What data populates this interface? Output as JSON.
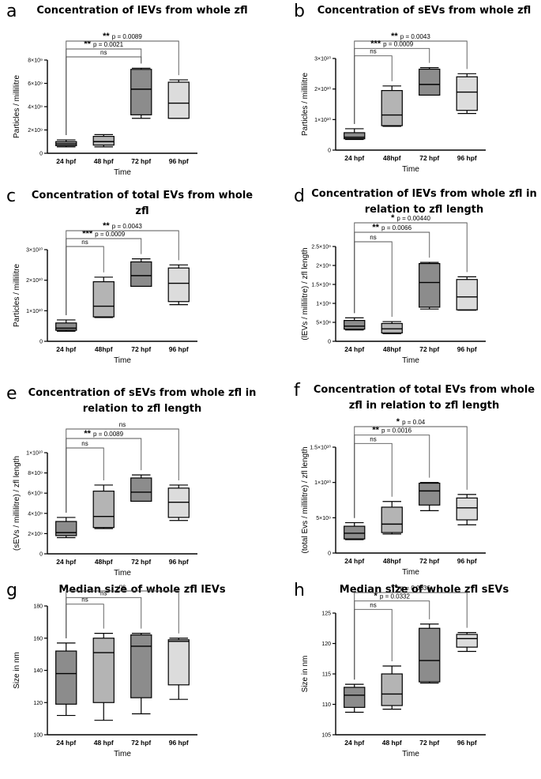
{
  "chart_data": [
    {
      "panel_label": "a",
      "type": "box",
      "title": "Concentration of lEVs from whole zfl",
      "xlabel": "Time",
      "ylabel": "Particles / millilitre",
      "categories": [
        "24 hpf",
        "48 hpf",
        "72 hpf",
        "96 hpf"
      ],
      "ylim": [
        0,
        8000000000
      ],
      "yticks": [
        0,
        2000000000,
        4000000000,
        6000000000,
        8000000000
      ],
      "ytick_labels": [
        "0",
        "2×10⁹",
        "4×10⁹",
        "6×10⁹",
        "8×10⁹"
      ],
      "boxes": [
        {
          "min": 550000000,
          "q1": 650000000,
          "median": 800000000,
          "q3": 1000000000,
          "max": 1150000000,
          "color": "#8c8c8c"
        },
        {
          "min": 550000000,
          "q1": 700000000,
          "median": 1000000000,
          "q3": 1450000000,
          "max": 1600000000,
          "color": "#b4b4b4"
        },
        {
          "min": 3000000000,
          "q1": 3300000000,
          "median": 5500000000,
          "q3": 7200000000,
          "max": 7300000000,
          "color": "#8c8c8c"
        },
        {
          "min": 3000000000,
          "q1": 3000000000,
          "median": 4300000000,
          "q3": 6100000000,
          "max": 6300000000,
          "color": "#dcdcdc"
        }
      ],
      "comparisons": [
        {
          "from": 0,
          "to": 2,
          "stars": "",
          "label": "ns"
        },
        {
          "from": 0,
          "to": 2,
          "stars": "**",
          "label": "p = 0.0021"
        },
        {
          "from": 0,
          "to": 3,
          "stars": "**",
          "label": "p = 0.0089"
        }
      ]
    },
    {
      "panel_label": "b",
      "type": "box",
      "title": "Concentration of sEVs from whole zfl",
      "xlabel": "Time",
      "ylabel": "Particles / millilitre",
      "categories": [
        "24 hpf",
        "48hpf",
        "72 hpf",
        "96 hpf"
      ],
      "ylim": [
        0,
        30000000000
      ],
      "yticks": [
        0,
        10000000000,
        20000000000,
        30000000000
      ],
      "ytick_labels": [
        "0",
        "1×10¹⁰",
        "2×10¹⁰",
        "3×10¹⁰"
      ],
      "boxes": [
        {
          "min": 3500000000,
          "q1": 3700000000,
          "median": 4200000000,
          "q3": 5700000000,
          "max": 7000000000,
          "color": "#8c8c8c"
        },
        {
          "min": 7800000000,
          "q1": 8000000000,
          "median": 11500000000,
          "q3": 19500000000,
          "max": 21000000000,
          "color": "#b4b4b4"
        },
        {
          "min": 18000000000,
          "q1": 18000000000,
          "median": 21500000000,
          "q3": 26500000000,
          "max": 27000000000,
          "color": "#8c8c8c"
        },
        {
          "min": 12000000000,
          "q1": 13000000000,
          "median": 19000000000,
          "q3": 24000000000,
          "max": 25000000000,
          "color": "#dcdcdc"
        }
      ],
      "comparisons": [
        {
          "from": 0,
          "to": 1,
          "stars": "",
          "label": "ns"
        },
        {
          "from": 0,
          "to": 2,
          "stars": "***",
          "label": "p = 0.0009"
        },
        {
          "from": 0,
          "to": 3,
          "stars": "**",
          "label": "p = 0.0043"
        }
      ]
    },
    {
      "panel_label": "c",
      "type": "box",
      "title": "Concentration of total EVs from whole zfl",
      "xlabel": "Time",
      "ylabel": "Particles / millilitre",
      "categories": [
        "24 hpf",
        "48hpf",
        "72 hpf",
        "96 hpf"
      ],
      "ylim": [
        0,
        30000000000
      ],
      "yticks": [
        0,
        10000000000,
        20000000000,
        30000000000
      ],
      "ytick_labels": [
        "0",
        "1×10¹⁰",
        "2×10¹⁰",
        "3×10¹⁰"
      ],
      "boxes": [
        {
          "min": 3300000000,
          "q1": 3600000000,
          "median": 4300000000,
          "q3": 6000000000,
          "max": 7000000000,
          "color": "#8c8c8c"
        },
        {
          "min": 7800000000,
          "q1": 8000000000,
          "median": 11500000000,
          "q3": 19500000000,
          "max": 21000000000,
          "color": "#b4b4b4"
        },
        {
          "min": 18000000000,
          "q1": 18000000000,
          "median": 21500000000,
          "q3": 26000000000,
          "max": 27000000000,
          "color": "#8c8c8c"
        },
        {
          "min": 12000000000,
          "q1": 13000000000,
          "median": 19000000000,
          "q3": 24000000000,
          "max": 25000000000,
          "color": "#dcdcdc"
        }
      ],
      "comparisons": [
        {
          "from": 0,
          "to": 1,
          "stars": "",
          "label": "ns"
        },
        {
          "from": 0,
          "to": 2,
          "stars": "***",
          "label": "p = 0.0009"
        },
        {
          "from": 0,
          "to": 3,
          "stars": "**",
          "label": "p = 0.0043"
        }
      ]
    },
    {
      "panel_label": "d",
      "type": "box",
      "title": "Concentration of lEVs from whole zfl in relation to zfl length",
      "xlabel": "Time",
      "ylabel": "(lEVs / millilitre) / zfl length",
      "categories": [
        "24 hpf",
        "48hpf",
        "72 hpf",
        "96 hpf"
      ],
      "ylim": [
        0,
        2500000000
      ],
      "yticks": [
        0,
        500000000,
        1000000000,
        1500000000,
        2000000000,
        2500000000
      ],
      "ytick_labels": [
        "0",
        "5×10⁸",
        "1×10⁹",
        "1.5×10⁹",
        "2×10⁹",
        "2.5×10⁹"
      ],
      "boxes": [
        {
          "min": 300000000,
          "q1": 320000000,
          "median": 400000000,
          "q3": 550000000,
          "max": 620000000,
          "color": "#8c8c8c"
        },
        {
          "min": 200000000,
          "q1": 220000000,
          "median": 330000000,
          "q3": 470000000,
          "max": 520000000,
          "color": "#b4b4b4"
        },
        {
          "min": 850000000,
          "q1": 900000000,
          "median": 1550000000,
          "q3": 2050000000,
          "max": 2080000000,
          "color": "#8c8c8c"
        },
        {
          "min": 820000000,
          "q1": 830000000,
          "median": 1170000000,
          "q3": 1630000000,
          "max": 1700000000,
          "color": "#dcdcdc"
        }
      ],
      "comparisons": [
        {
          "from": 0,
          "to": 1,
          "stars": "",
          "label": "ns"
        },
        {
          "from": 0,
          "to": 2,
          "stars": "**",
          "label": "p = 0.0066"
        },
        {
          "from": 0,
          "to": 3,
          "stars": "*",
          "label": "p = 0.00440"
        }
      ]
    },
    {
      "panel_label": "e",
      "type": "box",
      "title": "Concentration of sEVs from whole zfl in relation to zfl length",
      "xlabel": "Time",
      "ylabel": "(sEVs / millilitre) / zfl length",
      "categories": [
        "24 hpf",
        "48hpf",
        "72 hpf",
        "96 hpf"
      ],
      "ylim": [
        0,
        10000000000
      ],
      "yticks": [
        0,
        2000000000,
        4000000000,
        6000000000,
        8000000000,
        10000000000
      ],
      "ytick_labels": [
        "0",
        "2×10⁹",
        "4×10⁹",
        "6×10⁹",
        "8×10⁹",
        "1×10¹⁰"
      ],
      "boxes": [
        {
          "min": 1600000000,
          "q1": 1800000000,
          "median": 2100000000,
          "q3": 3200000000,
          "max": 3600000000,
          "color": "#8c8c8c"
        },
        {
          "min": 2500000000,
          "q1": 2600000000,
          "median": 3700000000,
          "q3": 6200000000,
          "max": 6800000000,
          "color": "#b4b4b4"
        },
        {
          "min": 5200000000,
          "q1": 5200000000,
          "median": 6100000000,
          "q3": 7500000000,
          "max": 7800000000,
          "color": "#8c8c8c"
        },
        {
          "min": 3300000000,
          "q1": 3600000000,
          "median": 5100000000,
          "q3": 6500000000,
          "max": 6800000000,
          "color": "#dcdcdc"
        }
      ],
      "comparisons": [
        {
          "from": 0,
          "to": 1,
          "stars": "",
          "label": "ns"
        },
        {
          "from": 0,
          "to": 2,
          "stars": "**",
          "label": "p = 0.0089"
        },
        {
          "from": 0,
          "to": 3,
          "stars": "",
          "label": "ns"
        }
      ]
    },
    {
      "panel_label": "f",
      "type": "box",
      "title": "Concentration of total EVs from whole zfl in relation to zfl length",
      "xlabel": "Time",
      "ylabel": "(total Evs / millilitre) / zfl length",
      "categories": [
        "24 hpf",
        "48hpf",
        "72 hpf",
        "96 hpf"
      ],
      "ylim": [
        0,
        15000000000
      ],
      "yticks": [
        0,
        5000000000,
        10000000000,
        15000000000
      ],
      "ytick_labels": [
        "0",
        "5×10⁹",
        "1×10¹⁰",
        "1.5×10¹⁰"
      ],
      "boxes": [
        {
          "min": 1900000000,
          "q1": 2000000000,
          "median": 2800000000,
          "q3": 3800000000,
          "max": 4300000000,
          "color": "#8c8c8c"
        },
        {
          "min": 2700000000,
          "q1": 2900000000,
          "median": 4100000000,
          "q3": 6500000000,
          "max": 7300000000,
          "color": "#b4b4b4"
        },
        {
          "min": 6000000000,
          "q1": 6800000000,
          "median": 8800000000,
          "q3": 9900000000,
          "max": 10000000000,
          "color": "#8c8c8c"
        },
        {
          "min": 4000000000,
          "q1": 4700000000,
          "median": 6400000000,
          "q3": 7800000000,
          "max": 8300000000,
          "color": "#dcdcdc"
        }
      ],
      "comparisons": [
        {
          "from": 0,
          "to": 1,
          "stars": "",
          "label": "ns"
        },
        {
          "from": 0,
          "to": 2,
          "stars": "**",
          "label": "p = 0.0016"
        },
        {
          "from": 0,
          "to": 3,
          "stars": "*",
          "label": "p = 0.04"
        }
      ]
    },
    {
      "panel_label": "g",
      "type": "box",
      "title": "Median size of whole zfl lEVs",
      "xlabel": "Time",
      "ylabel": "Size in nm",
      "categories": [
        "24 hpf",
        "48 hpf",
        "72 hpf",
        "96 hpf"
      ],
      "ylim": [
        100,
        180
      ],
      "yticks": [
        100,
        120,
        140,
        160,
        180
      ],
      "ytick_labels": [
        "100",
        "120",
        "140",
        "160",
        "180"
      ],
      "boxes": [
        {
          "min": 112,
          "q1": 119,
          "median": 138,
          "q3": 152,
          "max": 157,
          "color": "#8c8c8c"
        },
        {
          "min": 109,
          "q1": 120,
          "median": 151,
          "q3": 160,
          "max": 163,
          "color": "#b4b4b4"
        },
        {
          "min": 113,
          "q1": 123,
          "median": 155,
          "q3": 162,
          "max": 163,
          "color": "#8c8c8c"
        },
        {
          "min": 122,
          "q1": 131,
          "median": 158,
          "q3": 159,
          "max": 160,
          "color": "#dcdcdc"
        }
      ],
      "comparisons": [
        {
          "from": 0,
          "to": 1,
          "stars": "",
          "label": "ns"
        },
        {
          "from": 0,
          "to": 2,
          "stars": "",
          "label": "ns"
        },
        {
          "from": 0,
          "to": 3,
          "stars": "",
          "label": "ns"
        }
      ]
    },
    {
      "panel_label": "h",
      "type": "box",
      "title": "Median size of whole zfl sEVs",
      "xlabel": "Time",
      "ylabel": "Size in nm",
      "categories": [
        "24 hpf",
        "48 hpf",
        "72 hpf",
        "96 hpf"
      ],
      "ylim": [
        105,
        125
      ],
      "yticks": [
        105,
        110,
        115,
        120,
        125
      ],
      "ytick_labels": [
        "105",
        "110",
        "115",
        "120",
        "125"
      ],
      "boxes": [
        {
          "min": 108.7,
          "q1": 109.5,
          "median": 111.5,
          "q3": 112.8,
          "max": 113.3,
          "color": "#8c8c8c"
        },
        {
          "min": 109.2,
          "q1": 109.8,
          "median": 111.7,
          "q3": 115.0,
          "max": 116.3,
          "color": "#b4b4b4"
        },
        {
          "min": 113.5,
          "q1": 113.7,
          "median": 117.2,
          "q3": 122.5,
          "max": 123.2,
          "color": "#8c8c8c"
        },
        {
          "min": 118.7,
          "q1": 119.4,
          "median": 120.8,
          "q3": 121.5,
          "max": 121.8,
          "color": "#dcdcdc"
        }
      ],
      "comparisons": [
        {
          "from": 0,
          "to": 1,
          "stars": "",
          "label": "ns"
        },
        {
          "from": 0,
          "to": 2,
          "stars": "*",
          "label": "p = 0.0332"
        },
        {
          "from": 0,
          "to": 3,
          "stars": "**",
          "label": "p = 0.0036"
        }
      ]
    }
  ]
}
